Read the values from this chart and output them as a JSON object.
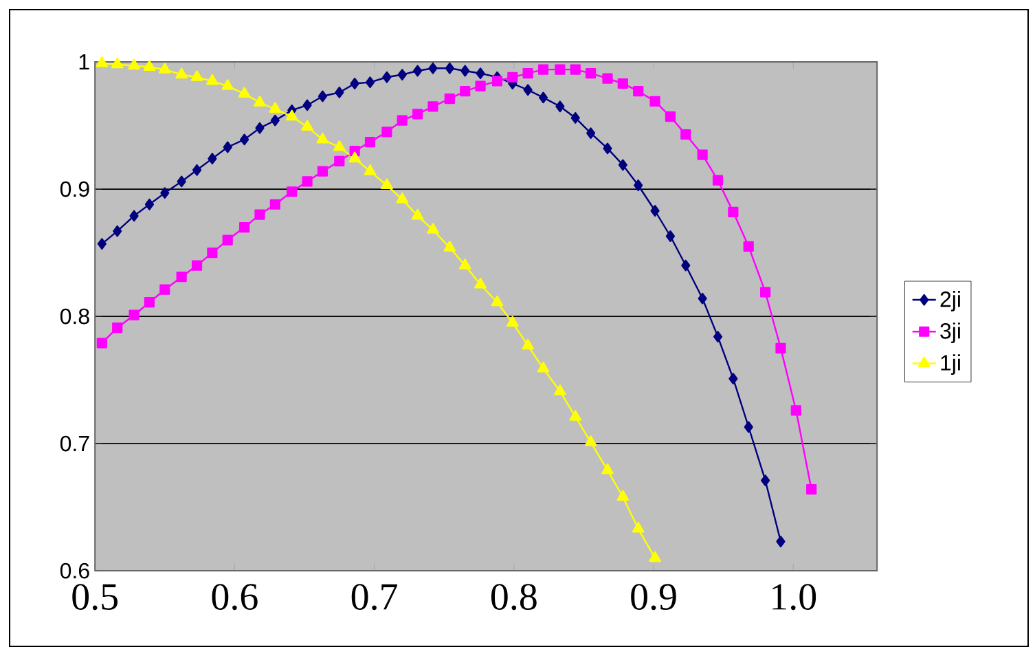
{
  "chart_data": {
    "type": "line",
    "xlim": [
      0.5,
      1.06
    ],
    "ylim": [
      0.6,
      1
    ],
    "xticks": [
      0.5,
      0.6,
      0.7,
      0.8,
      0.9,
      {
        "value": 1.0,
        "label": "1.0"
      }
    ],
    "yticks": [
      0.6,
      0.7,
      0.8,
      0.9,
      1
    ],
    "grid": "y",
    "legend": "right",
    "line_style": "solid",
    "series": [
      {
        "name": "2ji",
        "color": "#000080",
        "marker": "diamond",
        "x": [
          0.505,
          0.516,
          0.528,
          0.539,
          0.55,
          0.562,
          0.573,
          0.584,
          0.595,
          0.607,
          0.618,
          0.629,
          0.641,
          0.652,
          0.663,
          0.675,
          0.686,
          0.697,
          0.709,
          0.72,
          0.731,
          0.742,
          0.754,
          0.765,
          0.776,
          0.788,
          0.799,
          0.81,
          0.821,
          0.833,
          0.844,
          0.855,
          0.867,
          0.878,
          0.889,
          0.901,
          0.912,
          0.923,
          0.935,
          0.946,
          0.957,
          0.968,
          0.98,
          0.991
        ],
        "values": [
          0.857,
          0.867,
          0.879,
          0.888,
          0.897,
          0.906,
          0.915,
          0.924,
          0.933,
          0.939,
          0.948,
          0.954,
          0.962,
          0.966,
          0.973,
          0.976,
          0.983,
          0.984,
          0.988,
          0.99,
          0.993,
          0.995,
          0.995,
          0.993,
          0.991,
          0.988,
          0.983,
          0.978,
          0.972,
          0.965,
          0.956,
          0.944,
          0.932,
          0.919,
          0.903,
          0.883,
          0.863,
          0.84,
          0.814,
          0.784,
          0.751,
          0.713,
          0.671,
          0.623
        ]
      },
      {
        "name": "3ji",
        "color": "#ff00ff",
        "marker": "square",
        "x": [
          0.505,
          0.516,
          0.528,
          0.539,
          0.55,
          0.562,
          0.573,
          0.584,
          0.595,
          0.607,
          0.618,
          0.629,
          0.641,
          0.652,
          0.663,
          0.675,
          0.686,
          0.697,
          0.709,
          0.72,
          0.731,
          0.742,
          0.754,
          0.765,
          0.776,
          0.788,
          0.799,
          0.81,
          0.821,
          0.833,
          0.844,
          0.855,
          0.867,
          0.878,
          0.889,
          0.901,
          0.912,
          0.923,
          0.935,
          0.946,
          0.957,
          0.968,
          0.98,
          0.991,
          1.002,
          1.013
        ],
        "values": [
          0.779,
          0.791,
          0.801,
          0.811,
          0.821,
          0.831,
          0.84,
          0.85,
          0.86,
          0.87,
          0.88,
          0.888,
          0.898,
          0.906,
          0.914,
          0.922,
          0.93,
          0.937,
          0.945,
          0.954,
          0.959,
          0.965,
          0.971,
          0.977,
          0.981,
          0.985,
          0.988,
          0.991,
          0.994,
          0.994,
          0.994,
          0.991,
          0.987,
          0.983,
          0.977,
          0.969,
          0.957,
          0.943,
          0.927,
          0.907,
          0.882,
          0.855,
          0.819,
          0.775,
          0.726,
          0.664
        ]
      },
      {
        "name": "1ji",
        "color": "#ffff00",
        "marker": "triangle",
        "x": [
          0.505,
          0.516,
          0.528,
          0.539,
          0.55,
          0.562,
          0.573,
          0.584,
          0.595,
          0.607,
          0.618,
          0.629,
          0.641,
          0.652,
          0.663,
          0.675,
          0.686,
          0.697,
          0.709,
          0.72,
          0.731,
          0.742,
          0.754,
          0.765,
          0.776,
          0.788,
          0.799,
          0.81,
          0.821,
          0.833,
          0.844,
          0.855,
          0.867,
          0.878,
          0.889,
          0.901
        ],
        "values": [
          0.999,
          0.998,
          0.997,
          0.996,
          0.994,
          0.99,
          0.988,
          0.985,
          0.981,
          0.975,
          0.968,
          0.963,
          0.957,
          0.949,
          0.939,
          0.933,
          0.924,
          0.914,
          0.903,
          0.892,
          0.879,
          0.868,
          0.854,
          0.84,
          0.825,
          0.811,
          0.795,
          0.777,
          0.759,
          0.741,
          0.721,
          0.701,
          0.679,
          0.658,
          0.633,
          0.61
        ]
      }
    ]
  }
}
